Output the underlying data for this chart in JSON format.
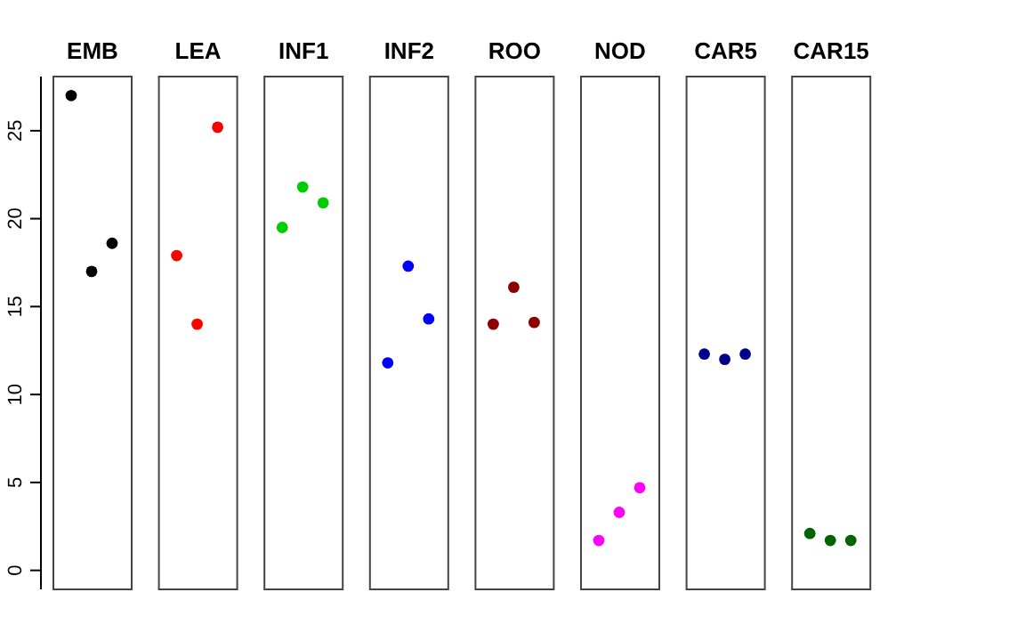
{
  "chart_data": {
    "type": "scatter",
    "categories": [
      "EMB",
      "LEA",
      "INF1",
      "INF2",
      "ROO",
      "NOD",
      "CAR5",
      "CAR15"
    ],
    "series": [
      {
        "colors": [
          "#000000",
          "#ff0000",
          "#00cd00",
          "#0000ff",
          "#8b0000",
          "#ff00ff",
          "#00008b",
          "#006400"
        ],
        "values": [
          27,
          17.9,
          19.5,
          11.8,
          14,
          1.7,
          12.3,
          2.1
        ]
      },
      {
        "colors": [
          "#000000",
          "#ff0000",
          "#00cd00",
          "#0000ff",
          "#8b0000",
          "#ff00ff",
          "#00008b",
          "#006400"
        ],
        "values": [
          17,
          14,
          21.8,
          17.3,
          16.1,
          3.3,
          12,
          1.7
        ]
      },
      {
        "colors": [
          "#000000",
          "#ff0000",
          "#00cd00",
          "#0000ff",
          "#8b0000",
          "#ff00ff",
          "#00008b",
          "#006400"
        ],
        "values": [
          18.6,
          25.2,
          20.9,
          14.3,
          14.1,
          4.7,
          12.3,
          1.7
        ]
      }
    ],
    "ylim": [
      -1.08,
      28.08
    ],
    "yticks": [
      0,
      5,
      10,
      15,
      20,
      25
    ],
    "marker": "circle"
  }
}
